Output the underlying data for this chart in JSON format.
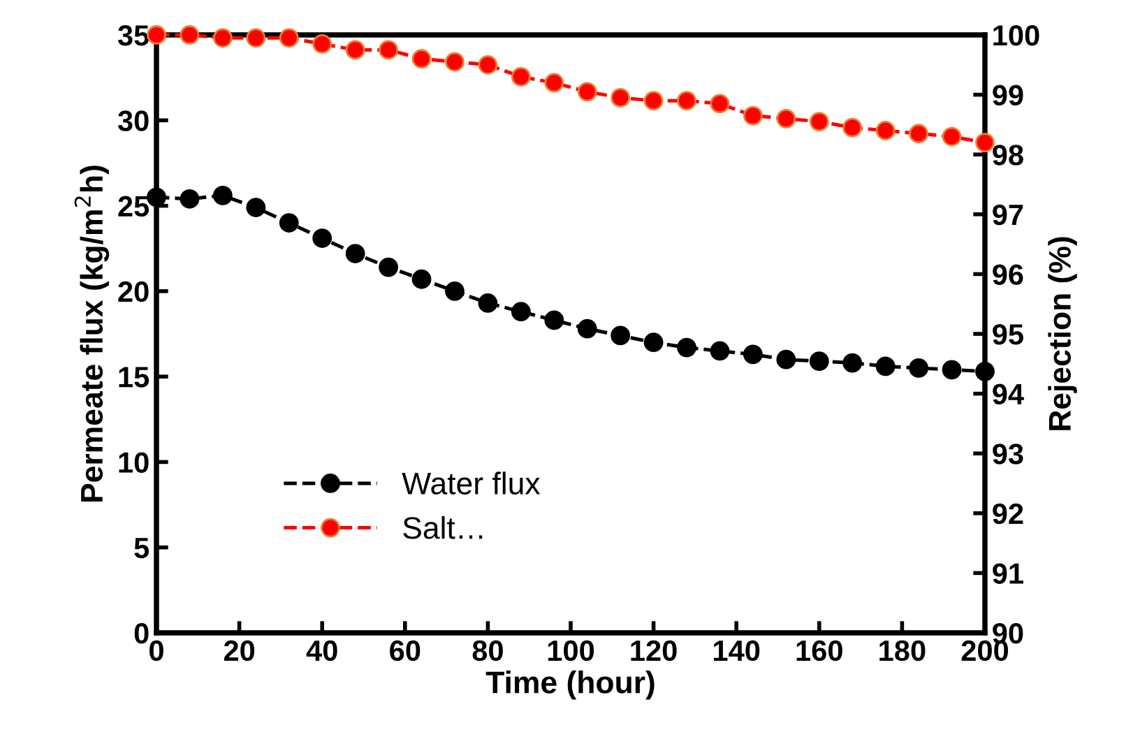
{
  "chart_data": {
    "type": "line",
    "xlabel": "Time (hour)",
    "ylabel": "Permeate flux (kg/m$^{2}$h)",
    "y2label": "Rejection (%)",
    "x": [
      0,
      8,
      16,
      24,
      32,
      40,
      48,
      56,
      64,
      72,
      80,
      88,
      96,
      104,
      112,
      120,
      128,
      136,
      144,
      152,
      160,
      168,
      176,
      184,
      192,
      200
    ],
    "series": [
      {
        "name": "Water flux",
        "color": "#000000",
        "values": [
          25.5,
          25.4,
          25.6,
          24.9,
          24.0,
          23.1,
          22.2,
          21.4,
          20.7,
          20.0,
          19.3,
          18.8,
          18.3,
          17.8,
          17.4,
          17.0,
          16.7,
          16.5,
          16.3,
          16.0,
          15.9,
          15.8,
          15.6,
          15.5,
          15.4,
          15.3
        ]
      },
      {
        "name": "Salt…",
        "color": "#ff0000",
        "axis": "y2",
        "values": [
          100,
          100,
          99.95,
          99.95,
          99.95,
          99.85,
          99.75,
          99.75,
          99.6,
          99.55,
          99.5,
          99.3,
          99.2,
          99.05,
          98.95,
          98.9,
          98.9,
          98.85,
          98.65,
          98.6,
          98.55,
          98.45,
          98.4,
          98.35,
          98.3,
          98.2
        ]
      }
    ],
    "xlim": [
      0,
      200
    ],
    "xticks": [
      0,
      20,
      40,
      60,
      80,
      100,
      120,
      140,
      160,
      180,
      200
    ],
    "ylim": [
      0,
      35
    ],
    "yticks": [
      0,
      5,
      10,
      15,
      20,
      25,
      30,
      35
    ],
    "y2lim": [
      90,
      100
    ],
    "y2ticks": [
      90,
      91,
      92,
      93,
      94,
      95,
      96,
      97,
      98,
      99,
      100
    ],
    "marker": "circle",
    "line_style": "dashed",
    "grid": false,
    "legend": "bottom left"
  }
}
